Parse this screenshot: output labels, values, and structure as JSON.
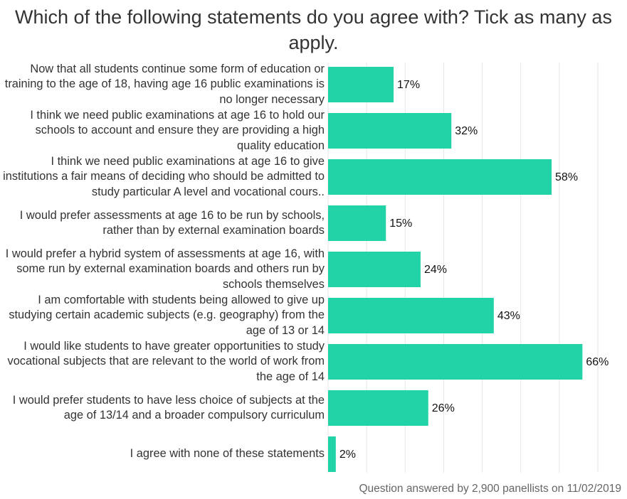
{
  "chart_data": {
    "type": "bar",
    "orientation": "horizontal",
    "title": "Which of the following statements do you agree with? Tick as many as apply.",
    "categories": [
      "Now that all students continue some form of education or training to the age of 18, having age 16 public examinations is no longer necessary",
      "I think we need public examinations at age 16 to hold our schools to account and ensure they are providing a high quality education",
      "I think we need public examinations at age 16 to give institutions a fair means of deciding who should be admitted to study particular A level and vocational cours..",
      "I would prefer assessments at age 16 to be run by schools, rather than by external examination boards",
      "I would prefer a hybrid system of assessments at age 16, with some run by external examination boards and others run by schools themselves",
      "I am comfortable with students being allowed to give up studying certain academic subjects (e.g. geography) from the age of 13 or 14",
      "I would like students to have greater opportunities to study vocational subjects that are relevant to the world of work from the age of 14",
      "I would prefer students to have less choice of subjects at the age of 13/14 and a broader compulsory curriculum",
      "I agree with none of these statements"
    ],
    "values": [
      17,
      32,
      58,
      15,
      24,
      43,
      66,
      26,
      2
    ],
    "value_labels": [
      "17%",
      "32%",
      "58%",
      "15%",
      "24%",
      "43%",
      "66%",
      "26%",
      "2%"
    ],
    "color": "#21d3a7",
    "xlim": [
      0,
      70
    ],
    "xticks": [
      0,
      10,
      20,
      30,
      40,
      50,
      60,
      70
    ],
    "grid": true,
    "note": "Question answered by 2,900 panellists on 11/02/2019"
  }
}
